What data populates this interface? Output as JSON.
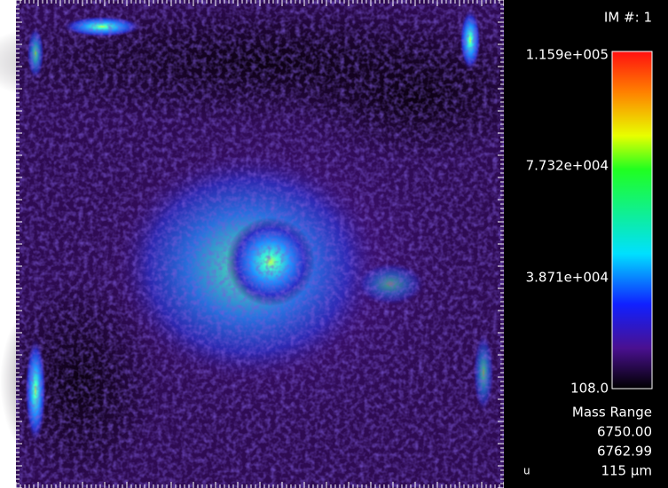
{
  "panel": {
    "image_number": "IM #: 1",
    "colorbar": {
      "labels": [
        "1.159e+005",
        "7.732e+004",
        "3.871e+004",
        "108.0"
      ]
    },
    "mass_range": {
      "title": "Mass Range",
      "from": "6750.00",
      "to": "6762.99"
    },
    "unit": "u",
    "scale_bar": "115 μm"
  }
}
